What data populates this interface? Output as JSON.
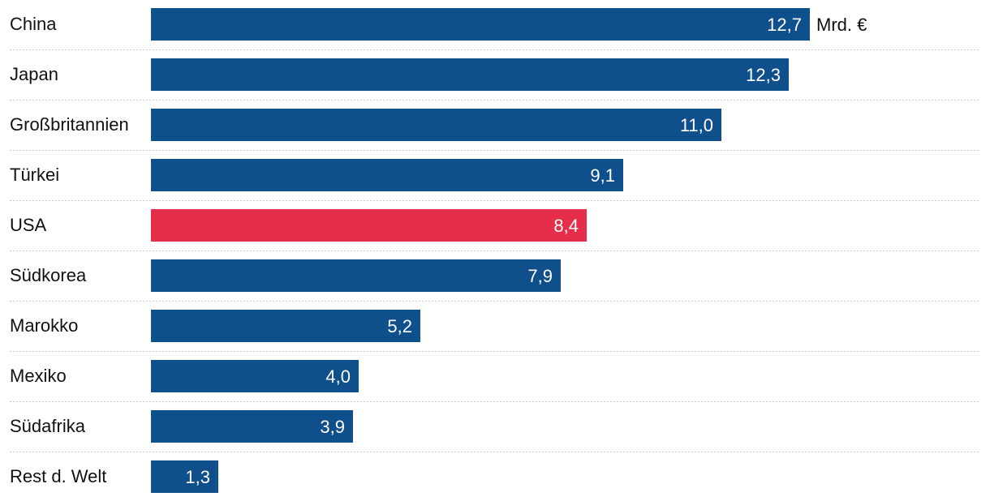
{
  "chart_data": {
    "type": "bar",
    "orientation": "horizontal",
    "categories": [
      "China",
      "Japan",
      "Großbritannien",
      "Türkei",
      "USA",
      "Südkorea",
      "Marokko",
      "Mexiko",
      "Südafrika",
      "Rest d. Welt"
    ],
    "values": [
      12.7,
      12.3,
      11.0,
      9.1,
      8.4,
      7.9,
      5.2,
      4.0,
      3.9,
      1.3
    ],
    "value_labels": [
      "12,7",
      "12,3",
      "11,0",
      "9,1",
      "8,4",
      "7,9",
      "5,2",
      "4,0",
      "3,9",
      "1,3"
    ],
    "unit": "Mrd. €",
    "highlight_category": "USA",
    "xlim": [
      0,
      12.7
    ],
    "colors": {
      "bar": "#0f4f8c",
      "highlight": "#e62e4a"
    },
    "legend": "none"
  }
}
